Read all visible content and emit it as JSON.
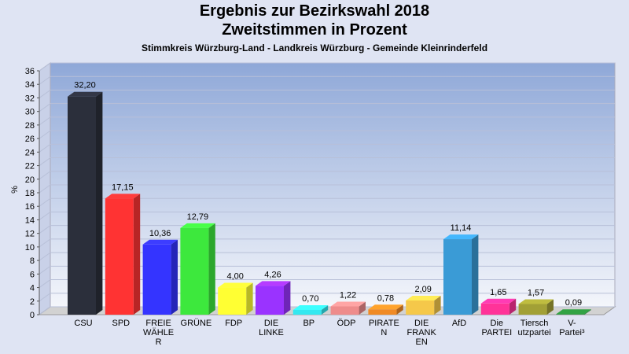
{
  "header": {
    "title_line1": "Ergebnis zur Bezirkswahl 2018",
    "title_line2": "Zweitstimmen in Prozent",
    "subtitle": "Stimmkreis Würzburg-Land - Landkreis Würzburg - Gemeinde Kleinrinderfeld"
  },
  "chart_data": {
    "type": "bar",
    "title": "Ergebnis zur Bezirkswahl 2018 Zweitstimmen in Prozent",
    "subtitle": "Stimmkreis Würzburg-Land - Landkreis Würzburg - Gemeinde Kleinrinderfeld",
    "ylabel": "%",
    "ylim": [
      0,
      36
    ],
    "yticks": [
      "0",
      "2",
      "4",
      "6",
      "8",
      "10",
      "12",
      "14",
      "16",
      "18",
      "20",
      "22",
      "24",
      "26",
      "28",
      "30",
      "32",
      "34",
      "36"
    ],
    "grid": true,
    "categories": [
      [
        "CSU"
      ],
      [
        "SPD"
      ],
      [
        "FREIE",
        "WÄHLE",
        "R"
      ],
      [
        "GRÜNE"
      ],
      [
        "FDP"
      ],
      [
        "DIE",
        "LINKE"
      ],
      [
        "BP"
      ],
      [
        "ÖDP"
      ],
      [
        "PIRATE",
        "N"
      ],
      [
        "DIE",
        "FRANK",
        "EN"
      ],
      [
        "AfD"
      ],
      [
        "Die",
        "PARTEI"
      ],
      [
        "Tiersch",
        "utzpartei"
      ],
      [
        "V-",
        "Partei³"
      ]
    ],
    "values": [
      32.2,
      17.15,
      10.36,
      12.79,
      4.0,
      4.26,
      0.7,
      1.22,
      0.78,
      2.09,
      11.14,
      1.65,
      1.57,
      0.09
    ],
    "value_labels": [
      "32,20",
      "17,15",
      "10,36",
      "12,79",
      "4,00",
      "4,26",
      "0,70",
      "1,22",
      "0,78",
      "2,09",
      "11,14",
      "1,65",
      "1,57",
      "0,09"
    ],
    "colors": [
      "#2b2f3b",
      "#ff3333",
      "#3434ff",
      "#3de83d",
      "#ffff33",
      "#9a33ff",
      "#34e8f0",
      "#ee8c8c",
      "#f08a25",
      "#f5c84a",
      "#3a9bd6",
      "#ff3399",
      "#a2a036",
      "#2a8a3a"
    ]
  }
}
